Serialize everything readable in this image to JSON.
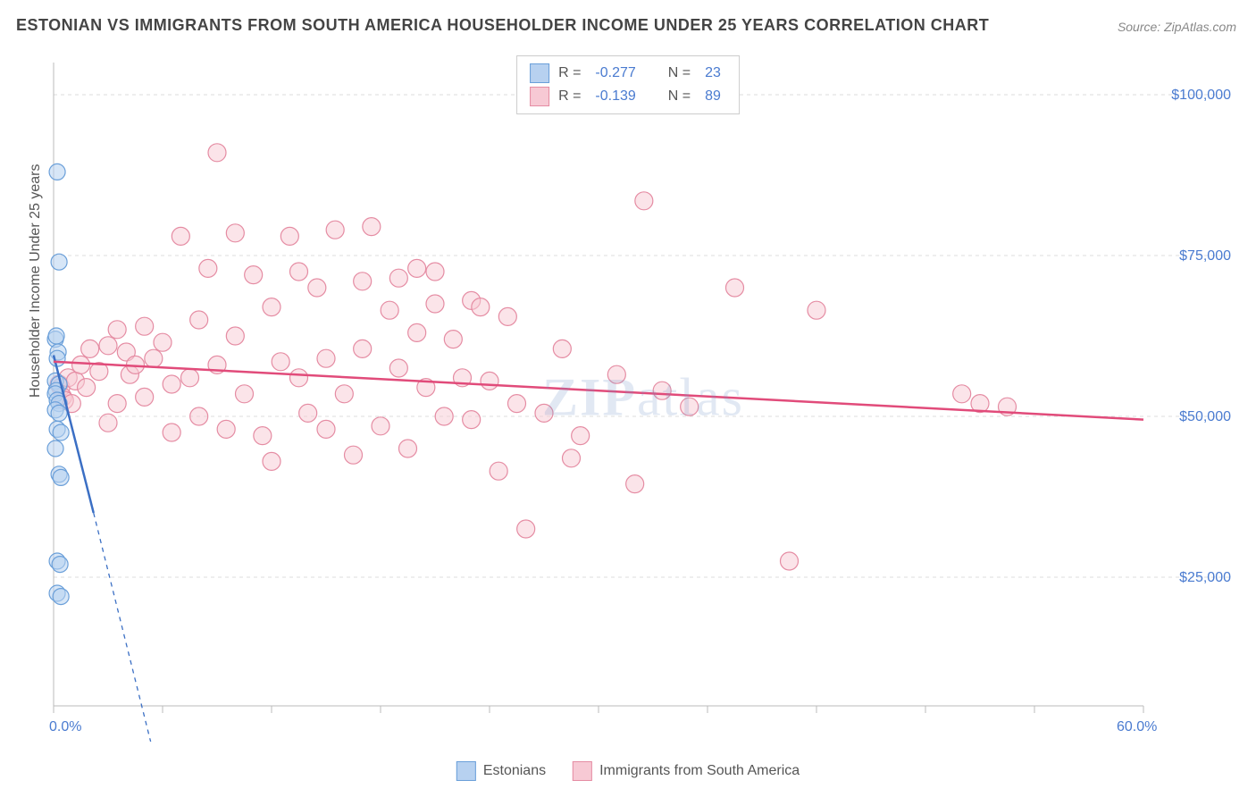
{
  "title": "ESTONIAN VS IMMIGRANTS FROM SOUTH AMERICA HOUSEHOLDER INCOME UNDER 25 YEARS CORRELATION CHART",
  "source": "Source: ZipAtlas.com",
  "watermark_bold": "ZIP",
  "watermark_rest": "atlas",
  "y_axis": {
    "label": "Householder Income Under 25 years",
    "ticks": [
      25000,
      50000,
      75000,
      100000
    ],
    "tick_labels": [
      "$25,000",
      "$50,000",
      "$75,000",
      "$100,000"
    ],
    "min": 5000,
    "max": 105000
  },
  "x_axis": {
    "min": 0,
    "max": 60,
    "min_label": "0.0%",
    "max_label": "60.0%",
    "ticks": [
      0,
      6,
      12,
      18,
      24,
      30,
      36,
      42,
      48,
      54,
      60
    ]
  },
  "series": [
    {
      "name": "Estonians",
      "color_fill": "#b7d1f0",
      "color_stroke": "#6a9fd9",
      "line_color": "#3b6fc4",
      "R": "-0.277",
      "N": "23",
      "marker_radius": 9,
      "marker_opacity": 0.55,
      "points": [
        [
          0.2,
          88000
        ],
        [
          0.3,
          74000
        ],
        [
          0.1,
          62000
        ],
        [
          0.15,
          62500
        ],
        [
          0.25,
          60000
        ],
        [
          0.2,
          59000
        ],
        [
          0.1,
          55500
        ],
        [
          0.3,
          55000
        ],
        [
          0.15,
          54000
        ],
        [
          0.1,
          53500
        ],
        [
          0.2,
          52500
        ],
        [
          0.3,
          52000
        ],
        [
          0.1,
          51000
        ],
        [
          0.3,
          50500
        ],
        [
          0.2,
          48000
        ],
        [
          0.4,
          47500
        ],
        [
          0.1,
          45000
        ],
        [
          0.3,
          41000
        ],
        [
          0.4,
          40500
        ],
        [
          0.2,
          27500
        ],
        [
          0.35,
          27000
        ],
        [
          0.2,
          22500
        ],
        [
          0.4,
          22000
        ]
      ],
      "regression": {
        "x1": 0,
        "y1": 59500,
        "x2": 2.2,
        "y2": 35000,
        "extend_x2": 6,
        "extend_y2": -8000
      }
    },
    {
      "name": "Immigrants from South America",
      "color_fill": "#f7c9d4",
      "color_stroke": "#e58ca3",
      "line_color": "#e14b7a",
      "R": "-0.139",
      "N": "89",
      "marker_radius": 10,
      "marker_opacity": 0.5,
      "points": [
        [
          0.3,
          55000
        ],
        [
          0.4,
          54500
        ],
        [
          0.5,
          53000
        ],
        [
          0.6,
          52500
        ],
        [
          0.8,
          56000
        ],
        [
          1.0,
          52000
        ],
        [
          1.2,
          55500
        ],
        [
          1.5,
          58000
        ],
        [
          1.8,
          54500
        ],
        [
          2.0,
          60500
        ],
        [
          9.0,
          91000
        ],
        [
          2.5,
          57000
        ],
        [
          3.0,
          61000
        ],
        [
          3.0,
          49000
        ],
        [
          3.5,
          63500
        ],
        [
          3.5,
          52000
        ],
        [
          4.0,
          60000
        ],
        [
          4.2,
          56500
        ],
        [
          4.5,
          58000
        ],
        [
          5.0,
          64000
        ],
        [
          5.0,
          53000
        ],
        [
          5.5,
          59000
        ],
        [
          6.0,
          61500
        ],
        [
          6.5,
          55000
        ],
        [
          6.5,
          47500
        ],
        [
          7.0,
          78000
        ],
        [
          7.5,
          56000
        ],
        [
          8.0,
          50000
        ],
        [
          8.0,
          65000
        ],
        [
          8.5,
          73000
        ],
        [
          9.0,
          58000
        ],
        [
          9.5,
          48000
        ],
        [
          10.0,
          62500
        ],
        [
          10.0,
          78500
        ],
        [
          10.5,
          53500
        ],
        [
          11.0,
          72000
        ],
        [
          11.5,
          47000
        ],
        [
          12.0,
          67000
        ],
        [
          12.0,
          43000
        ],
        [
          12.5,
          58500
        ],
        [
          13.0,
          78000
        ],
        [
          13.5,
          72500
        ],
        [
          13.5,
          56000
        ],
        [
          14.0,
          50500
        ],
        [
          14.5,
          70000
        ],
        [
          15.0,
          48000
        ],
        [
          15.0,
          59000
        ],
        [
          15.5,
          79000
        ],
        [
          16.0,
          53500
        ],
        [
          16.5,
          44000
        ],
        [
          17.0,
          71000
        ],
        [
          17.0,
          60500
        ],
        [
          17.5,
          79500
        ],
        [
          18.0,
          48500
        ],
        [
          18.5,
          66500
        ],
        [
          19.0,
          57500
        ],
        [
          19.0,
          71500
        ],
        [
          19.5,
          45000
        ],
        [
          20.0,
          63000
        ],
        [
          20.0,
          73000
        ],
        [
          20.5,
          54500
        ],
        [
          21.0,
          67500
        ],
        [
          21.0,
          72500
        ],
        [
          21.5,
          50000
        ],
        [
          22.0,
          62000
        ],
        [
          22.5,
          56000
        ],
        [
          23.0,
          68000
        ],
        [
          23.0,
          49500
        ],
        [
          23.5,
          67000
        ],
        [
          24.0,
          55500
        ],
        [
          24.5,
          41500
        ],
        [
          25.0,
          65500
        ],
        [
          25.5,
          52000
        ],
        [
          27.0,
          50500
        ],
        [
          28.0,
          60500
        ],
        [
          28.5,
          43500
        ],
        [
          29.0,
          47000
        ],
        [
          26.0,
          32500
        ],
        [
          31.0,
          56500
        ],
        [
          32.0,
          39500
        ],
        [
          32.5,
          83500
        ],
        [
          33.5,
          54000
        ],
        [
          35.0,
          51500
        ],
        [
          37.5,
          70000
        ],
        [
          40.5,
          27500
        ],
        [
          42.0,
          66500
        ],
        [
          50.0,
          53500
        ],
        [
          51.0,
          52000
        ],
        [
          52.5,
          51500
        ]
      ],
      "regression": {
        "x1": 0,
        "y1": 58500,
        "x2": 60,
        "y2": 49500
      }
    }
  ],
  "legend_R_label": "R =",
  "legend_N_label": "N =",
  "grid_color": "#dddddd",
  "axis_color": "#bbbbbb",
  "plot_bg": "#ffffff"
}
